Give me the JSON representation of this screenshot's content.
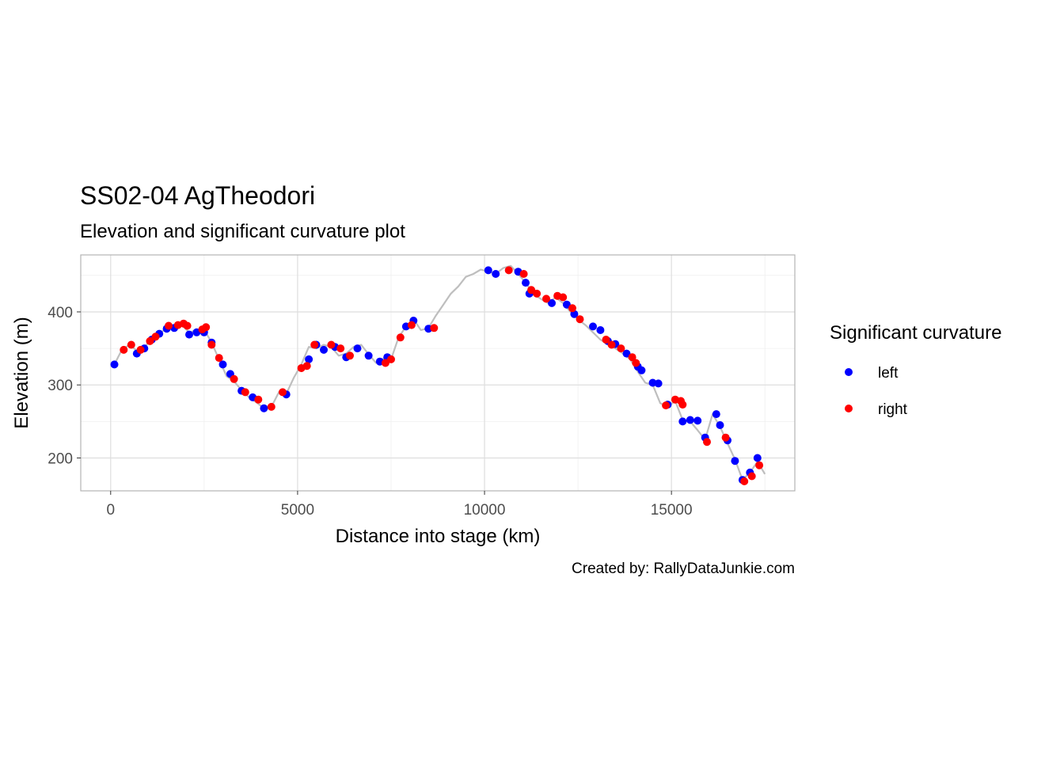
{
  "chart_data": {
    "type": "scatter",
    "title": "SS02-04 AgTheodori",
    "subtitle": "Elevation and significant curvature plot",
    "xlabel": "Distance into stage (km)",
    "ylabel": "Elevation (m)",
    "caption": "Created by: RallyDataJunkie.com",
    "xlim": [
      -800,
      18300
    ],
    "ylim": [
      155,
      478
    ],
    "x_ticks": [
      0,
      5000,
      10000,
      15000
    ],
    "x_tick_labels": [
      "0",
      "5000",
      "10000",
      "15000"
    ],
    "y_ticks": [
      200,
      300,
      400
    ],
    "y_tick_labels": [
      "200",
      "300",
      "400"
    ],
    "grid": true,
    "legend": {
      "title": "Significant curvature",
      "position": "right",
      "entries": [
        {
          "label": "left",
          "color": "#0000ff"
        },
        {
          "label": "right",
          "color": "#ff0000"
        }
      ]
    },
    "profile_line": {
      "color": "#bebebe",
      "x": [
        100,
        300,
        500,
        700,
        900,
        1100,
        1300,
        1500,
        1700,
        1900,
        2100,
        2300,
        2500,
        2700,
        2900,
        3100,
        3300,
        3500,
        3700,
        3900,
        4100,
        4300,
        4500,
        4700,
        4900,
        5100,
        5300,
        5500,
        5700,
        5900,
        6100,
        6300,
        6500,
        6700,
        6900,
        7100,
        7300,
        7500,
        7700,
        7900,
        8100,
        8300,
        8500,
        8700,
        8900,
        9100,
        9300,
        9500,
        9700,
        9900,
        10100,
        10300,
        10500,
        10700,
        10900,
        11100,
        11300,
        11500,
        11700,
        11900,
        12100,
        12300,
        12500,
        12700,
        12900,
        13100,
        13300,
        13500,
        13700,
        13900,
        14100,
        14300,
        14500,
        14700,
        14900,
        15100,
        15300,
        15500,
        15700,
        15900,
        16100,
        16300,
        16500,
        16700,
        16900,
        17100,
        17300,
        17500
      ],
      "y": [
        328,
        348,
        355,
        347,
        352,
        362,
        370,
        378,
        380,
        382,
        372,
        375,
        376,
        358,
        335,
        312,
        305,
        293,
        283,
        276,
        268,
        270,
        290,
        288,
        310,
        328,
        352,
        350,
        355,
        352,
        340,
        343,
        352,
        355,
        342,
        330,
        336,
        335,
        365,
        380,
        390,
        375,
        378,
        395,
        410,
        425,
        435,
        448,
        452,
        458,
        455,
        452,
        460,
        463,
        452,
        440,
        425,
        418,
        412,
        420,
        412,
        400,
        390,
        382,
        372,
        362,
        355,
        350,
        343,
        335,
        318,
        303,
        300,
        275,
        270,
        278,
        252,
        250,
        238,
        225,
        260,
        243,
        220,
        198,
        170,
        180,
        195,
        178
      ]
    },
    "series": [
      {
        "name": "left",
        "color": "#0000ff",
        "points": [
          [
            100,
            328
          ],
          [
            700,
            343
          ],
          [
            900,
            350
          ],
          [
            1100,
            362
          ],
          [
            1300,
            370
          ],
          [
            1500,
            377
          ],
          [
            1700,
            378
          ],
          [
            2100,
            369
          ],
          [
            2300,
            372
          ],
          [
            2500,
            372
          ],
          [
            2700,
            358
          ],
          [
            3000,
            328
          ],
          [
            3200,
            315
          ],
          [
            3500,
            292
          ],
          [
            3800,
            283
          ],
          [
            4100,
            268
          ],
          [
            4700,
            287
          ],
          [
            5300,
            335
          ],
          [
            5500,
            355
          ],
          [
            5700,
            348
          ],
          [
            6000,
            352
          ],
          [
            6300,
            338
          ],
          [
            6600,
            350
          ],
          [
            6900,
            340
          ],
          [
            7200,
            332
          ],
          [
            7400,
            338
          ],
          [
            7900,
            380
          ],
          [
            8100,
            388
          ],
          [
            8500,
            377
          ],
          [
            10100,
            457
          ],
          [
            10300,
            452
          ],
          [
            10900,
            455
          ],
          [
            11100,
            440
          ],
          [
            11200,
            425
          ],
          [
            11800,
            412
          ],
          [
            12200,
            410
          ],
          [
            12400,
            397
          ],
          [
            12900,
            380
          ],
          [
            13100,
            375
          ],
          [
            13300,
            360
          ],
          [
            13500,
            356
          ],
          [
            13800,
            343
          ],
          [
            14100,
            325
          ],
          [
            14200,
            320
          ],
          [
            14500,
            303
          ],
          [
            14650,
            302
          ],
          [
            14900,
            273
          ],
          [
            15300,
            250
          ],
          [
            15500,
            252
          ],
          [
            15700,
            251
          ],
          [
            15900,
            228
          ],
          [
            16200,
            260
          ],
          [
            16300,
            245
          ],
          [
            16500,
            224
          ],
          [
            16700,
            196
          ],
          [
            16900,
            170
          ],
          [
            17100,
            180
          ],
          [
            17300,
            200
          ]
        ]
      },
      {
        "name": "right",
        "color": "#ff0000",
        "points": [
          [
            350,
            348
          ],
          [
            550,
            355
          ],
          [
            800,
            348
          ],
          [
            1050,
            360
          ],
          [
            1200,
            366
          ],
          [
            1550,
            381
          ],
          [
            1800,
            382
          ],
          [
            1950,
            384
          ],
          [
            2050,
            381
          ],
          [
            2450,
            376
          ],
          [
            2550,
            379
          ],
          [
            2700,
            355
          ],
          [
            2900,
            337
          ],
          [
            3300,
            308
          ],
          [
            3600,
            290
          ],
          [
            3950,
            280
          ],
          [
            4300,
            270
          ],
          [
            4600,
            290
          ],
          [
            5100,
            323
          ],
          [
            5250,
            326
          ],
          [
            5450,
            355
          ],
          [
            5900,
            355
          ],
          [
            6150,
            350
          ],
          [
            6400,
            340
          ],
          [
            7350,
            330
          ],
          [
            7500,
            335
          ],
          [
            7750,
            365
          ],
          [
            8050,
            382
          ],
          [
            8650,
            378
          ],
          [
            10650,
            457
          ],
          [
            11050,
            452
          ],
          [
            11250,
            430
          ],
          [
            11400,
            425
          ],
          [
            11650,
            418
          ],
          [
            11950,
            422
          ],
          [
            12100,
            420
          ],
          [
            12350,
            405
          ],
          [
            12550,
            390
          ],
          [
            13250,
            362
          ],
          [
            13400,
            355
          ],
          [
            13650,
            350
          ],
          [
            13950,
            338
          ],
          [
            14050,
            330
          ],
          [
            14850,
            272
          ],
          [
            15100,
            280
          ],
          [
            15250,
            278
          ],
          [
            15300,
            273
          ],
          [
            15950,
            222
          ],
          [
            16450,
            228
          ],
          [
            16950,
            168
          ],
          [
            17150,
            175
          ],
          [
            17350,
            190
          ]
        ]
      }
    ]
  }
}
